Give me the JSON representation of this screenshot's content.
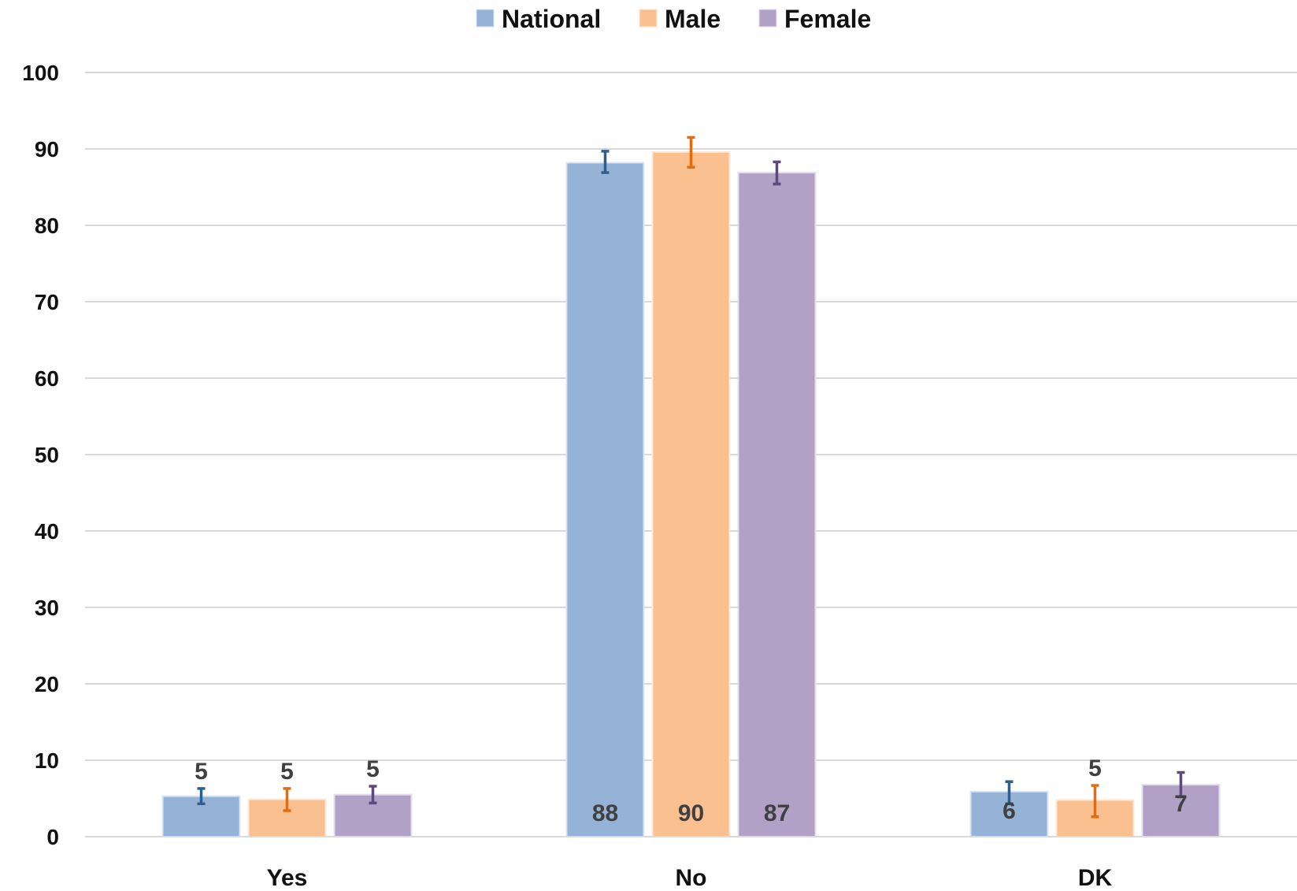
{
  "chart_data": {
    "type": "bar",
    "categories": [
      "Yes",
      "No",
      "DK"
    ],
    "series": [
      {
        "name": "National",
        "color": "#95b3d7",
        "stroke": "#dce6f2",
        "error_color": "#2f5f8f",
        "values": [
          5.3,
          88.2,
          5.9
        ],
        "labels": [
          "5",
          "88",
          "6"
        ],
        "error_low": [
          4.3,
          86.9,
          4.3
        ],
        "error_high": [
          6.3,
          89.7,
          7.2
        ]
      },
      {
        "name": "Male",
        "color": "#fac090",
        "stroke": "#fde9d9",
        "error_color": "#e46c0a",
        "values": [
          4.9,
          89.6,
          4.8
        ],
        "labels": [
          "5",
          "90",
          "5"
        ],
        "error_low": [
          3.4,
          87.6,
          2.6
        ],
        "error_high": [
          6.3,
          91.5,
          6.7
        ]
      },
      {
        "name": "Female",
        "color": "#b2a1c7",
        "stroke": "#e4dfec",
        "error_color": "#5f497a",
        "values": [
          5.5,
          86.9,
          6.8
        ],
        "labels": [
          "5",
          "87",
          "7"
        ],
        "error_low": [
          4.4,
          85.4,
          5.2
        ],
        "error_high": [
          6.6,
          88.3,
          8.4
        ]
      }
    ],
    "ylim": [
      0,
      100
    ],
    "yticks": [
      "0",
      "10",
      "20",
      "30",
      "40",
      "50",
      "60",
      "70",
      "80",
      "90",
      "100"
    ],
    "grid": true,
    "legend_position": "top-center",
    "title": "",
    "xlabel": "",
    "ylabel": ""
  }
}
